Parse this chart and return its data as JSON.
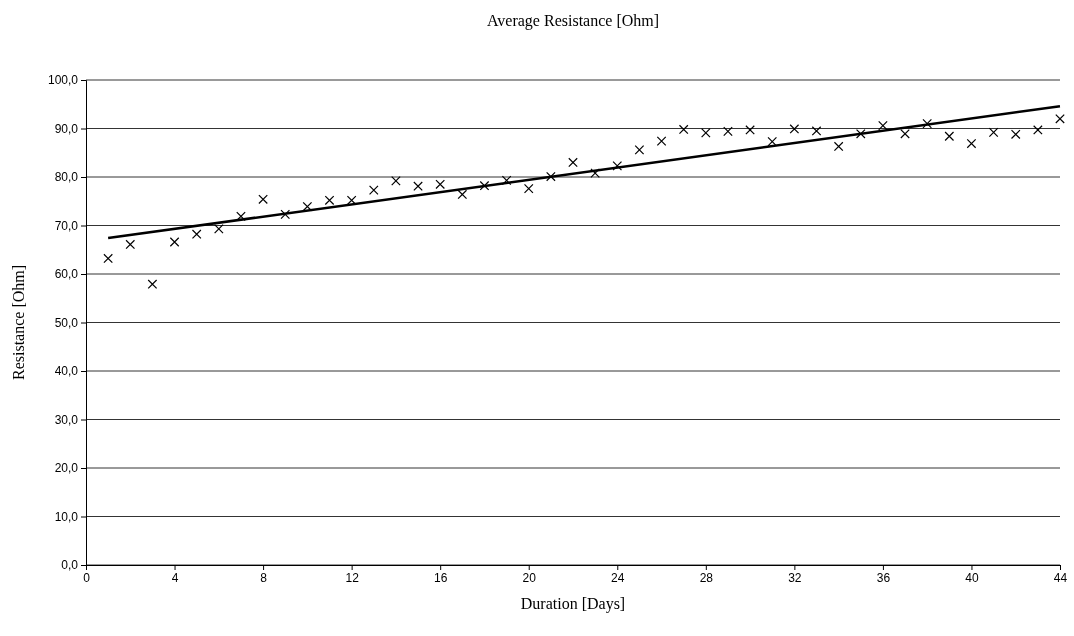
{
  "chart_data": {
    "type": "scatter",
    "title": "Average Resistance [Ohm]",
    "xlabel": "Duration [Days]",
    "ylabel": "Resistance [Ohm]",
    "x": [
      1,
      2,
      3,
      4,
      5,
      6,
      7,
      8,
      9,
      10,
      11,
      12,
      13,
      14,
      15,
      16,
      17,
      18,
      19,
      20,
      21,
      22,
      23,
      24,
      25,
      26,
      27,
      28,
      29,
      30,
      31,
      32,
      33,
      34,
      35,
      36,
      37,
      38,
      39,
      40,
      41,
      42,
      43,
      44
    ],
    "series": [
      {
        "color": "#000000",
        "marker": "cross",
        "values": [
          63.2,
          66.1,
          57.9,
          66.6,
          68.2,
          69.3,
          71.9,
          75.4,
          72.3,
          73.9,
          75.2,
          75.2,
          77.3,
          79.2,
          78.1,
          78.5,
          76.4,
          78.2,
          79.3,
          77.6,
          80.1,
          83.0,
          80.8,
          82.3,
          85.6,
          87.4,
          89.8,
          89.1,
          89.4,
          89.7,
          87.3,
          89.9,
          89.5,
          86.3,
          88.9,
          90.6,
          88.9,
          91.0,
          88.4,
          86.9,
          89.2,
          88.8,
          89.7,
          92.0
        ]
      },
      {
        "type": "line",
        "color": "#000000",
        "marker": "none",
        "line_style": "solid",
        "x": [
          1,
          44
        ],
        "values": [
          67.4,
          94.6
        ]
      }
    ],
    "xlim": [
      0,
      44
    ],
    "xticks": [
      0,
      4,
      8,
      12,
      16,
      20,
      24,
      28,
      32,
      36,
      40,
      44
    ],
    "ylim": [
      0,
      100
    ],
    "yticks": [
      {
        "value": 0,
        "label": "0,0"
      },
      {
        "value": 10,
        "label": "10,0"
      },
      {
        "value": 20,
        "label": "20,0"
      },
      {
        "value": 30,
        "label": "30,0"
      },
      {
        "value": 40,
        "label": "40,0"
      },
      {
        "value": 50,
        "label": "50,0"
      },
      {
        "value": 60,
        "label": "60,0"
      },
      {
        "value": 70,
        "label": "70,0"
      },
      {
        "value": 80,
        "label": "80,0"
      },
      {
        "value": 90,
        "label": "90,0"
      },
      {
        "value": 100,
        "label": "100,0"
      }
    ],
    "grid": "y"
  }
}
